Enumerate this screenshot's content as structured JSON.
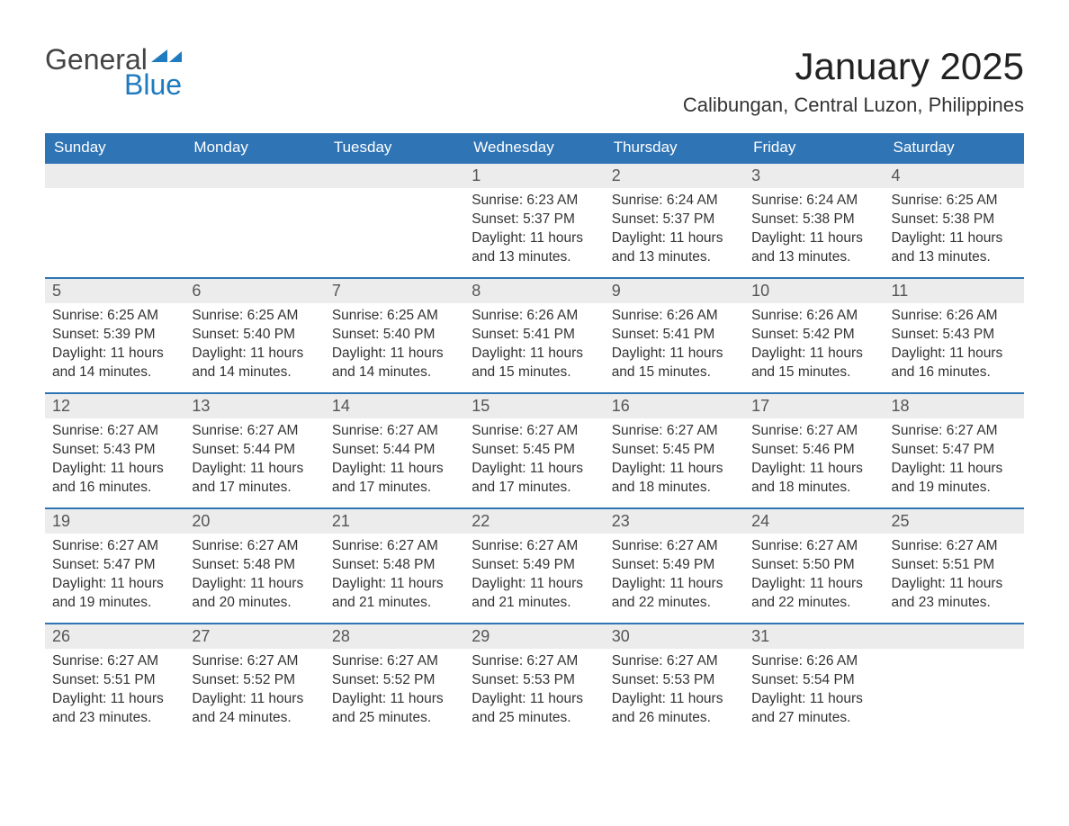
{
  "brand": {
    "word1": "General",
    "word2": "Blue",
    "accent_color": "#1f7bbf"
  },
  "title": "January 2025",
  "location": "Calibungan, Central Luzon, Philippines",
  "colors": {
    "header_bg": "#2f74b5",
    "header_text": "#ffffff",
    "daybar_bg": "#ececec",
    "daybar_border": "#2f74b5",
    "body_text": "#333333"
  },
  "weekdays": [
    "Sunday",
    "Monday",
    "Tuesday",
    "Wednesday",
    "Thursday",
    "Friday",
    "Saturday"
  ],
  "labels": {
    "sunrise": "Sunrise:",
    "sunset": "Sunset:",
    "daylight": "Daylight:"
  },
  "weeks": [
    [
      null,
      null,
      null,
      {
        "n": "1",
        "sunrise": "6:23 AM",
        "sunset": "5:37 PM",
        "daylight": "11 hours and 13 minutes."
      },
      {
        "n": "2",
        "sunrise": "6:24 AM",
        "sunset": "5:37 PM",
        "daylight": "11 hours and 13 minutes."
      },
      {
        "n": "3",
        "sunrise": "6:24 AM",
        "sunset": "5:38 PM",
        "daylight": "11 hours and 13 minutes."
      },
      {
        "n": "4",
        "sunrise": "6:25 AM",
        "sunset": "5:38 PM",
        "daylight": "11 hours and 13 minutes."
      }
    ],
    [
      {
        "n": "5",
        "sunrise": "6:25 AM",
        "sunset": "5:39 PM",
        "daylight": "11 hours and 14 minutes."
      },
      {
        "n": "6",
        "sunrise": "6:25 AM",
        "sunset": "5:40 PM",
        "daylight": "11 hours and 14 minutes."
      },
      {
        "n": "7",
        "sunrise": "6:25 AM",
        "sunset": "5:40 PM",
        "daylight": "11 hours and 14 minutes."
      },
      {
        "n": "8",
        "sunrise": "6:26 AM",
        "sunset": "5:41 PM",
        "daylight": "11 hours and 15 minutes."
      },
      {
        "n": "9",
        "sunrise": "6:26 AM",
        "sunset": "5:41 PM",
        "daylight": "11 hours and 15 minutes."
      },
      {
        "n": "10",
        "sunrise": "6:26 AM",
        "sunset": "5:42 PM",
        "daylight": "11 hours and 15 minutes."
      },
      {
        "n": "11",
        "sunrise": "6:26 AM",
        "sunset": "5:43 PM",
        "daylight": "11 hours and 16 minutes."
      }
    ],
    [
      {
        "n": "12",
        "sunrise": "6:27 AM",
        "sunset": "5:43 PM",
        "daylight": "11 hours and 16 minutes."
      },
      {
        "n": "13",
        "sunrise": "6:27 AM",
        "sunset": "5:44 PM",
        "daylight": "11 hours and 17 minutes."
      },
      {
        "n": "14",
        "sunrise": "6:27 AM",
        "sunset": "5:44 PM",
        "daylight": "11 hours and 17 minutes."
      },
      {
        "n": "15",
        "sunrise": "6:27 AM",
        "sunset": "5:45 PM",
        "daylight": "11 hours and 17 minutes."
      },
      {
        "n": "16",
        "sunrise": "6:27 AM",
        "sunset": "5:45 PM",
        "daylight": "11 hours and 18 minutes."
      },
      {
        "n": "17",
        "sunrise": "6:27 AM",
        "sunset": "5:46 PM",
        "daylight": "11 hours and 18 minutes."
      },
      {
        "n": "18",
        "sunrise": "6:27 AM",
        "sunset": "5:47 PM",
        "daylight": "11 hours and 19 minutes."
      }
    ],
    [
      {
        "n": "19",
        "sunrise": "6:27 AM",
        "sunset": "5:47 PM",
        "daylight": "11 hours and 19 minutes."
      },
      {
        "n": "20",
        "sunrise": "6:27 AM",
        "sunset": "5:48 PM",
        "daylight": "11 hours and 20 minutes."
      },
      {
        "n": "21",
        "sunrise": "6:27 AM",
        "sunset": "5:48 PM",
        "daylight": "11 hours and 21 minutes."
      },
      {
        "n": "22",
        "sunrise": "6:27 AM",
        "sunset": "5:49 PM",
        "daylight": "11 hours and 21 minutes."
      },
      {
        "n": "23",
        "sunrise": "6:27 AM",
        "sunset": "5:49 PM",
        "daylight": "11 hours and 22 minutes."
      },
      {
        "n": "24",
        "sunrise": "6:27 AM",
        "sunset": "5:50 PM",
        "daylight": "11 hours and 22 minutes."
      },
      {
        "n": "25",
        "sunrise": "6:27 AM",
        "sunset": "5:51 PM",
        "daylight": "11 hours and 23 minutes."
      }
    ],
    [
      {
        "n": "26",
        "sunrise": "6:27 AM",
        "sunset": "5:51 PM",
        "daylight": "11 hours and 23 minutes."
      },
      {
        "n": "27",
        "sunrise": "6:27 AM",
        "sunset": "5:52 PM",
        "daylight": "11 hours and 24 minutes."
      },
      {
        "n": "28",
        "sunrise": "6:27 AM",
        "sunset": "5:52 PM",
        "daylight": "11 hours and 25 minutes."
      },
      {
        "n": "29",
        "sunrise": "6:27 AM",
        "sunset": "5:53 PM",
        "daylight": "11 hours and 25 minutes."
      },
      {
        "n": "30",
        "sunrise": "6:27 AM",
        "sunset": "5:53 PM",
        "daylight": "11 hours and 26 minutes."
      },
      {
        "n": "31",
        "sunrise": "6:26 AM",
        "sunset": "5:54 PM",
        "daylight": "11 hours and 27 minutes."
      },
      null
    ]
  ]
}
